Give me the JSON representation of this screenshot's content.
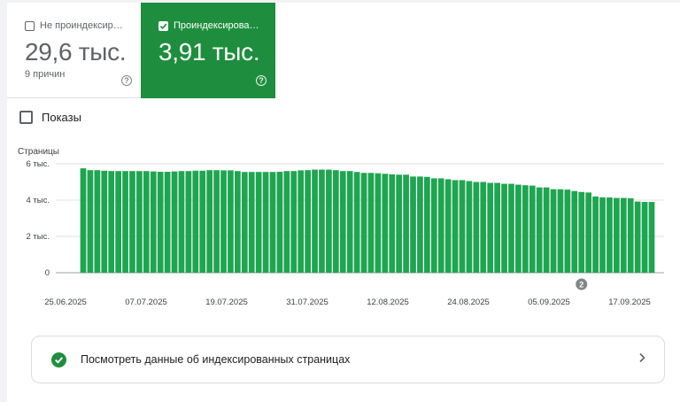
{
  "tiles": [
    {
      "label": "Не проиндексир…",
      "value": "29,6 тыс.",
      "sub": "9 причин",
      "checked": false
    },
    {
      "label": "Проиндексирова…",
      "value": "3,91 тыс.",
      "checked": true
    }
  ],
  "impressions_label": "Показы",
  "link_label": "Посмотреть данные об индексированных страницах",
  "colors": {
    "accent": "#1e8e3e",
    "bar": "#1fa551"
  },
  "chart_data": {
    "type": "bar",
    "ylabel": "Страницы",
    "ylim": [
      0,
      6000
    ],
    "yticks": [
      "0",
      "2 тыс.",
      "4 тыс.",
      "6 тыс."
    ],
    "xtick_labels": [
      "25.06.2025",
      "07.07.2025",
      "19.07.2025",
      "31.07.2025",
      "12.08.2025",
      "24.08.2025",
      "05.09.2025",
      "17.09.2025"
    ],
    "annotation": {
      "label": "2",
      "category_index": 71
    },
    "values": [
      5750,
      5650,
      5650,
      5620,
      5600,
      5600,
      5600,
      5600,
      5600,
      5600,
      5580,
      5560,
      5560,
      5580,
      5600,
      5600,
      5620,
      5620,
      5650,
      5650,
      5640,
      5640,
      5600,
      5550,
      5550,
      5550,
      5550,
      5550,
      5560,
      5600,
      5600,
      5640,
      5650,
      5680,
      5680,
      5680,
      5650,
      5600,
      5600,
      5550,
      5500,
      5500,
      5480,
      5450,
      5420,
      5400,
      5400,
      5300,
      5300,
      5280,
      5200,
      5200,
      5150,
      5100,
      5100,
      5050,
      5000,
      5000,
      4950,
      4950,
      4900,
      4900,
      4850,
      4820,
      4800,
      4700,
      4700,
      4600,
      4600,
      4580,
      4500,
      4450,
      4420,
      4200,
      4150,
      4150,
      4120,
      4120,
      4100,
      3920,
      3900,
      3900
    ]
  }
}
